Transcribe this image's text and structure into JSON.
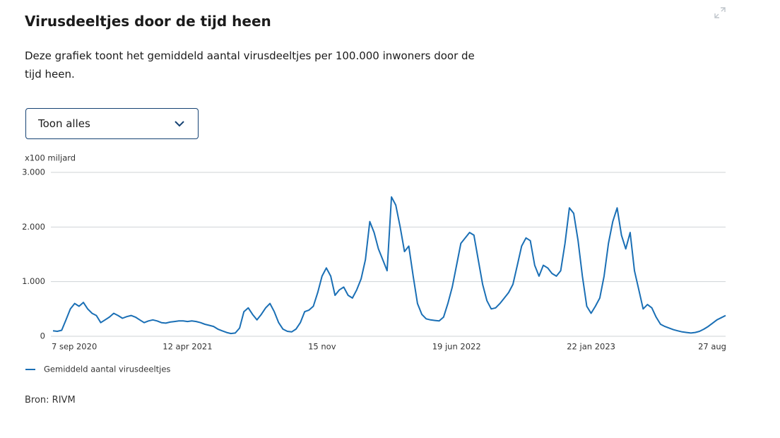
{
  "title": "Virusdeeltjes door de tijd heen",
  "description": "Deze grafiek toont het gemiddeld aantal virusdeeltjes per 100.000 inwoners door de tijd heen.",
  "dropdown": "Toon alles",
  "source": "Bron: RIVM",
  "chart_data": {
    "type": "line",
    "y_label": "x100 miljard",
    "categories": [
      "7 sep 2020",
      null,
      null,
      null,
      null,
      null,
      null,
      null,
      null,
      null,
      null,
      null,
      null,
      null,
      null,
      null,
      null,
      null,
      null,
      null,
      null,
      null,
      null,
      null,
      null,
      null,
      null,
      null,
      null,
      null,
      null,
      "12 apr 2021",
      null,
      null,
      null,
      null,
      null,
      null,
      null,
      null,
      null,
      null,
      null,
      null,
      null,
      null,
      null,
      null,
      null,
      null,
      null,
      null,
      null,
      null,
      null,
      null,
      null,
      null,
      null,
      null,
      null,
      null,
      "15 nov",
      null,
      null,
      null,
      null,
      null,
      null,
      null,
      null,
      null,
      null,
      null,
      null,
      null,
      null,
      null,
      null,
      null,
      null,
      null,
      null,
      null,
      null,
      null,
      null,
      null,
      null,
      null,
      null,
      null,
      null,
      "19 jun 2022",
      null,
      null,
      null,
      null,
      null,
      null,
      null,
      null,
      null,
      null,
      null,
      null,
      null,
      null,
      null,
      null,
      null,
      null,
      null,
      null,
      null,
      null,
      null,
      null,
      null,
      null,
      null,
      null,
      null,
      null,
      "22 jan 2023",
      null,
      null,
      null,
      null,
      null,
      null,
      null,
      null,
      null,
      null,
      null,
      null,
      null,
      null,
      null,
      null,
      null,
      null,
      null,
      null,
      null,
      null,
      null,
      null,
      null,
      null,
      null,
      null,
      null,
      null,
      "27 aug"
    ],
    "series": [
      {
        "name": "Gemiddeld aantal virusdeeltjes",
        "color": "#1a6fb5",
        "values": [
          100,
          90,
          110,
          300,
          500,
          600,
          550,
          620,
          500,
          420,
          380,
          250,
          300,
          350,
          420,
          380,
          330,
          360,
          380,
          350,
          300,
          250,
          280,
          300,
          280,
          250,
          240,
          260,
          270,
          280,
          280,
          270,
          280,
          270,
          250,
          220,
          200,
          180,
          130,
          100,
          70,
          50,
          60,
          150,
          450,
          520,
          400,
          300,
          400,
          520,
          600,
          450,
          250,
          130,
          90,
          80,
          130,
          250,
          450,
          480,
          550,
          800,
          1100,
          1250,
          1100,
          750,
          850,
          900,
          750,
          700,
          850,
          1050,
          1400,
          2100,
          1900,
          1600,
          1400,
          1200,
          2550,
          2400,
          2000,
          1550,
          1650,
          1100,
          600,
          400,
          320,
          300,
          290,
          280,
          350,
          600,
          900,
          1300,
          1700,
          1800,
          1900,
          1850,
          1400,
          950,
          650,
          500,
          520,
          600,
          700,
          800,
          950,
          1300,
          1650,
          1800,
          1750,
          1300,
          1100,
          1300,
          1250,
          1150,
          1100,
          1200,
          1700,
          2350,
          2250,
          1750,
          1100,
          550,
          420,
          550,
          700,
          1100,
          1700,
          2100,
          2350,
          1850,
          1600,
          1900,
          1200,
          850,
          500,
          580,
          520,
          350,
          220,
          180,
          150,
          120,
          100,
          80,
          70,
          60,
          70,
          90,
          130,
          180,
          240,
          300,
          340,
          380
        ]
      }
    ],
    "ylim": [
      0,
      3000
    ],
    "yticks": [
      0,
      {
        "value": 1000,
        "label": "1.000"
      },
      {
        "value": 2000,
        "label": "2.000"
      },
      {
        "value": 3000,
        "label": "3.000"
      }
    ],
    "grid": true
  }
}
